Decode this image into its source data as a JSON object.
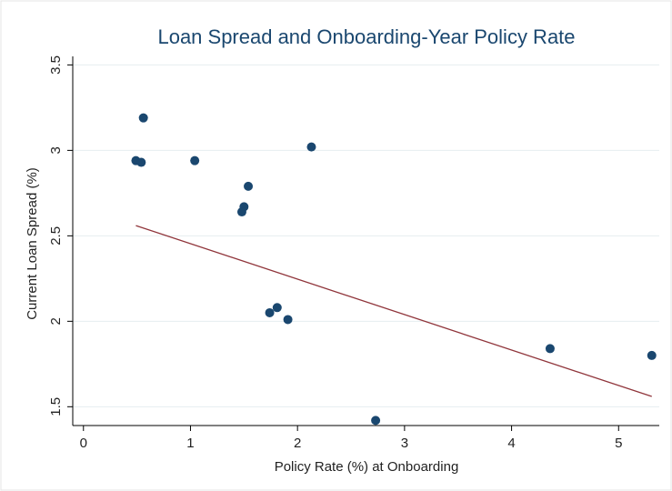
{
  "chart_data": {
    "type": "scatter",
    "title": "Loan Spread and Onboarding-Year Policy Rate",
    "x_label": "Policy Rate (%) at Onboarding",
    "y_label": "Current Loan Spread (%)",
    "series": [
      {
        "color": "#1a476f",
        "x": [
          0.49,
          0.54,
          0.56,
          1.04,
          1.54,
          1.5,
          1.48,
          2.13,
          1.74,
          1.81,
          1.91,
          2.73,
          4.36,
          5.31
        ],
        "values": [
          2.94,
          2.93,
          3.19,
          2.94,
          2.79,
          2.67,
          2.64,
          3.02,
          2.05,
          2.08,
          2.01,
          1.42,
          1.84,
          1.8
        ]
      }
    ],
    "fit_line": {
      "color": "#90353b",
      "x": [
        0.49,
        5.31
      ],
      "values": [
        2.56,
        1.56
      ]
    },
    "xlim": [
      -0.1,
      5.38
    ],
    "xticks": [
      0,
      1,
      2,
      3,
      4,
      5
    ],
    "ylim": [
      1.39,
      3.55
    ],
    "yticks": [
      1.5,
      2,
      2.5,
      3,
      3.5
    ],
    "grid": true
  }
}
